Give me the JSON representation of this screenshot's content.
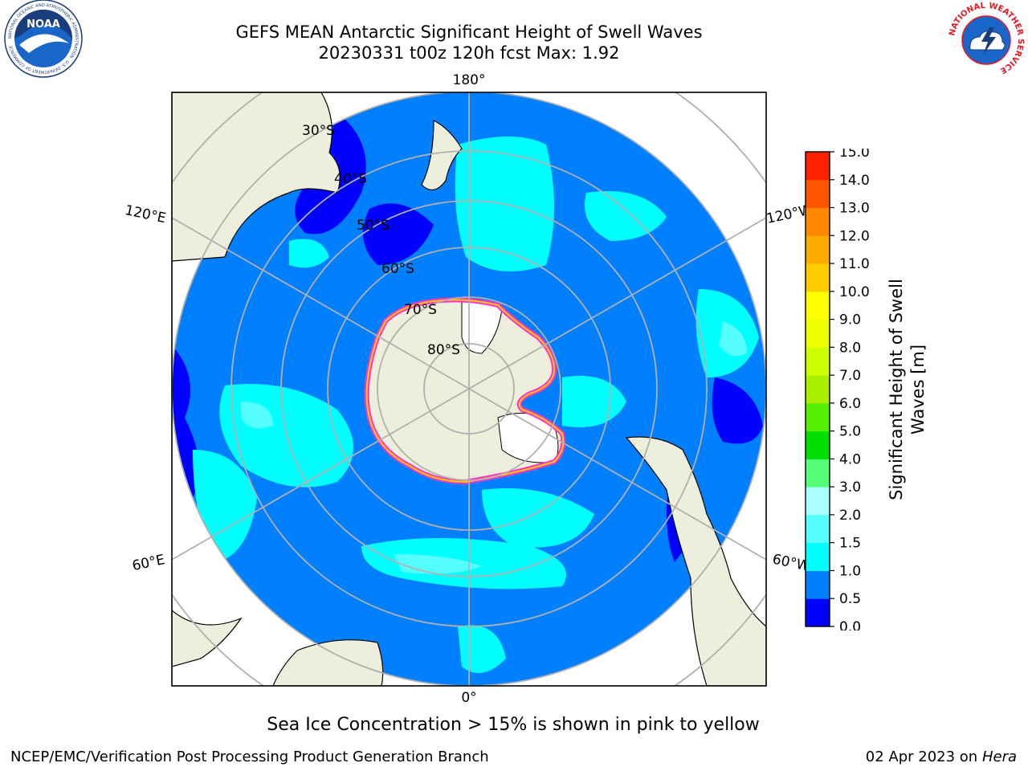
{
  "header": {
    "title_line1": "GEFS MEAN Antarctic Significant Height of Swell Waves",
    "title_line2": "20230331 t00z 120h fcst   Max: 1.92"
  },
  "logos": {
    "noaa": {
      "text": "NOAA",
      "ring_text": "NATIONAL OCEANIC AND ATMOSPHERIC ADMINISTRATION · U.S. DEPARTMENT OF COMMERCE",
      "icon": "noaa-logo-icon"
    },
    "nws": {
      "ring_text": "NATIONAL WEATHER SERVICE",
      "icon": "nws-logo-icon"
    }
  },
  "map": {
    "projection": "south-polar-stereographic",
    "lon_labels": {
      "top": "180°",
      "bottom": "0°",
      "upper_left": "120°E",
      "upper_right": "120°W",
      "lower_left": "60°E",
      "lower_right": "60°W"
    },
    "lat_labels": [
      "30°S",
      "40°S",
      "50°S",
      "60°S",
      "70°S",
      "80°S"
    ],
    "colors": {
      "land": "#eeeedc",
      "ice_edge_pink": "#ff33cc",
      "ice_edge_yellow": "#ffcc00",
      "grid": "#b0b0b0"
    }
  },
  "colorbar": {
    "label_line1": "Significant Height of Swell",
    "label_line2": "Waves [m]",
    "ticks": [
      "0.0",
      "0.5",
      "1.0",
      "1.5",
      "2.0",
      "3.0",
      "4.0",
      "5.0",
      "6.0",
      "7.0",
      "8.0",
      "9.0",
      "10.0",
      "11.0",
      "12.0",
      "13.0",
      "14.0",
      "15.0"
    ],
    "colors": [
      "#0000ff",
      "#0080ff",
      "#00ffff",
      "#55ffff",
      "#aaffff",
      "#55ff77",
      "#00dd00",
      "#55ee00",
      "#aaee00",
      "#ccff00",
      "#eeff00",
      "#ffff00",
      "#ffcc00",
      "#ffaa00",
      "#ff8800",
      "#ff5500",
      "#ff2200"
    ]
  },
  "footer": {
    "note": "Sea Ice Concentration > 15% is shown in pink to yellow",
    "credit": "NCEP/EMC/Verification Post Processing Product Generation Branch",
    "date": "02 Apr 2023 on ",
    "host": "Hera"
  }
}
